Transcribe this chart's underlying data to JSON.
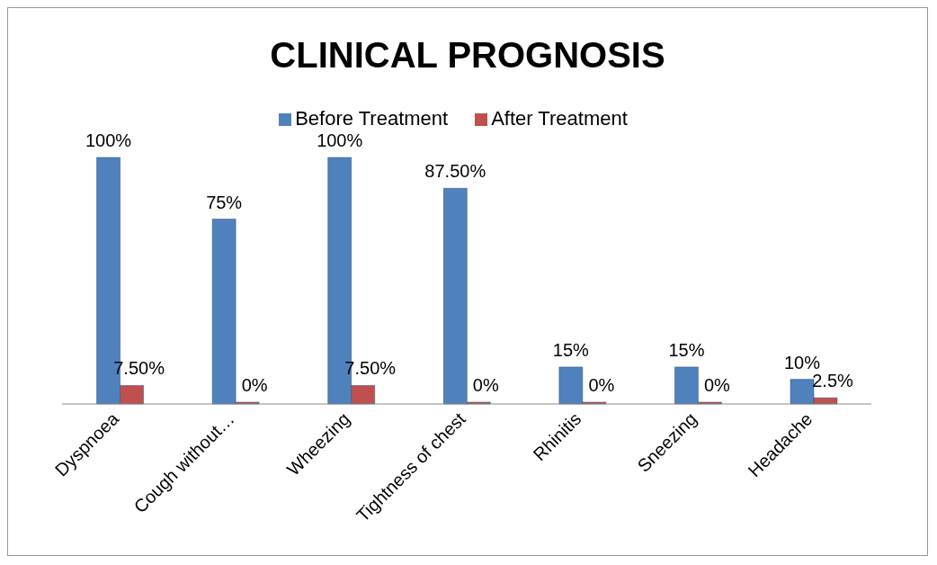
{
  "chart_data": {
    "type": "bar",
    "title": "CLINICAL PROGNOSIS",
    "categories": [
      "Dyspnoea",
      "Cough without…",
      "Wheezing",
      "Tightness of chest",
      "Rhinitis",
      "Sneezing",
      "Headache"
    ],
    "series": [
      {
        "name": "Before Treatment",
        "color": "#4f81bd",
        "values": [
          100,
          75,
          100,
          87.5,
          15,
          15,
          10
        ],
        "value_labels": [
          "100%",
          "75%",
          "100%",
          "87.50%",
          "15%",
          "15%",
          "10%"
        ]
      },
      {
        "name": "After Treatment",
        "color": "#c0504d",
        "values": [
          7.5,
          0,
          7.5,
          0,
          0,
          0,
          2.5
        ],
        "value_labels": [
          "7.50%",
          "0%",
          "7.50%",
          "0%",
          "0%",
          "0%",
          "2.5%"
        ]
      }
    ],
    "legend": "top",
    "grid": false
  }
}
